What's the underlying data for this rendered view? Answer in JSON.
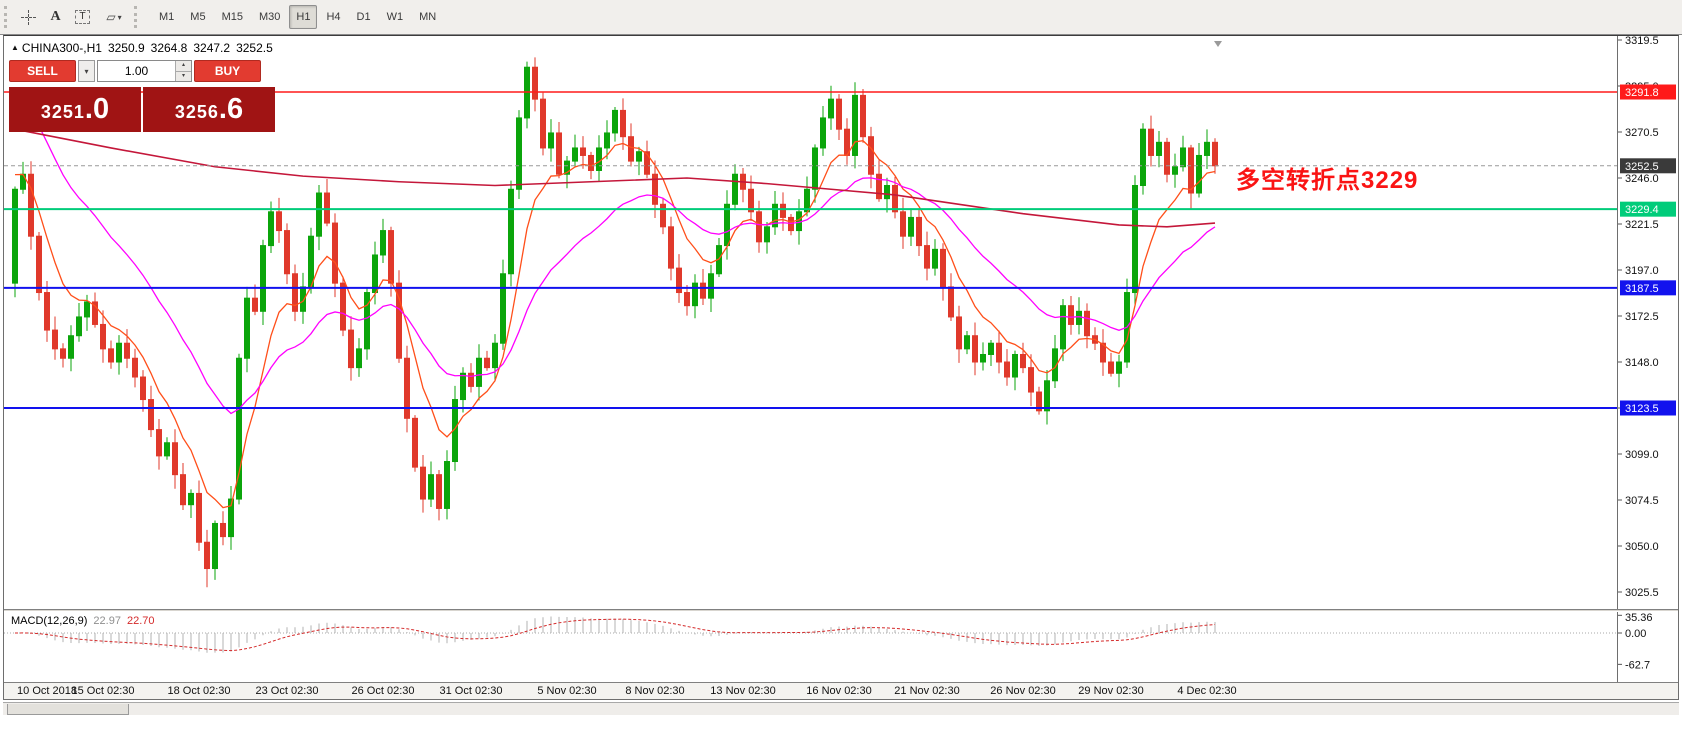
{
  "toolbar": {
    "text_tool_glyph": "A",
    "label_tool_glyph": "T",
    "shapes_glyph": "▱",
    "caret_glyph": "▾",
    "timeframes": [
      {
        "label": "M1",
        "active": false
      },
      {
        "label": "M5",
        "active": false
      },
      {
        "label": "M15",
        "active": false
      },
      {
        "label": "M30",
        "active": false
      },
      {
        "label": "H1",
        "active": true
      },
      {
        "label": "H4",
        "active": false
      },
      {
        "label": "D1",
        "active": false
      },
      {
        "label": "W1",
        "active": false
      },
      {
        "label": "MN",
        "active": false
      }
    ]
  },
  "chart_header": {
    "marker": "▲",
    "symbol": "CHINA300-,H1",
    "open": "3250.9",
    "high": "3264.8",
    "low": "3247.2",
    "close": "3252.5"
  },
  "trade_panel": {
    "sell_label": "SELL",
    "buy_label": "BUY",
    "volume": "1.00",
    "sell_price_main": "3251",
    "sell_price_frac": ".0",
    "buy_price_main": "3256",
    "buy_price_frac": ".6",
    "button_color": "#e23b30",
    "panel_color": "#a01414",
    "caret_down": "▾",
    "spin_up": "▴",
    "spin_down": "▾"
  },
  "annotation": {
    "text": "多空转折点3229",
    "color": "#fa1414"
  },
  "price_axis": {
    "ticks": [
      "3319.5",
      "3295.0",
      "3270.5",
      "3246.0",
      "3221.5",
      "3197.0",
      "3172.5",
      "3148.0",
      "3123.5",
      "3099.0",
      "3074.5",
      "3050.0",
      "3025.5"
    ]
  },
  "hlines": [
    {
      "price": 3291.8,
      "label": "3291.8",
      "color": "#ff1a1a",
      "width": 1.5
    },
    {
      "price": 3229.4,
      "label": "3229.4",
      "color": "#00cc7a",
      "width": 2
    },
    {
      "price": 3187.5,
      "label": "3187.5",
      "color": "#1212ee",
      "width": 2
    },
    {
      "price": 3123.5,
      "label": "3123.5",
      "color": "#1212ee",
      "width": 2
    }
  ],
  "current_price": {
    "value": 3252.5,
    "label": "3252.5",
    "badge_color": "#3a3a3a"
  },
  "chart_data": {
    "type": "candlestick",
    "title": "CHINA300-,H1",
    "symbol": "CHINA300-",
    "timeframe": "H1",
    "ylim": [
      3025.5,
      3319.5
    ],
    "up_color": "#0ba50b",
    "down_color": "#e0392b",
    "first_open": 3190,
    "wick_scale": 6,
    "closes": [
      3240,
      3248,
      3215,
      3185,
      3165,
      3155,
      3150,
      3162,
      3172,
      3180,
      3168,
      3155,
      3148,
      3158,
      3150,
      3140,
      3128,
      3112,
      3098,
      3105,
      3088,
      3072,
      3078,
      3052,
      3038,
      3062,
      3055,
      3075,
      3150,
      3182,
      3175,
      3210,
      3228,
      3218,
      3195,
      3175,
      3188,
      3215,
      3238,
      3222,
      3190,
      3165,
      3145,
      3155,
      3185,
      3205,
      3218,
      3190,
      3150,
      3118,
      3092,
      3075,
      3088,
      3070,
      3095,
      3128,
      3142,
      3135,
      3150,
      3145,
      3158,
      3195,
      3240,
      3278,
      3305,
      3288,
      3262,
      3270,
      3248,
      3255,
      3262,
      3258,
      3250,
      3262,
      3270,
      3282,
      3268,
      3255,
      3260,
      3248,
      3232,
      3220,
      3198,
      3185,
      3178,
      3190,
      3182,
      3195,
      3210,
      3232,
      3248,
      3240,
      3228,
      3212,
      3220,
      3232,
      3225,
      3218,
      3228,
      3240,
      3262,
      3278,
      3288,
      3272,
      3258,
      3290,
      3268,
      3248,
      3235,
      3242,
      3228,
      3215,
      3225,
      3210,
      3198,
      3208,
      3188,
      3172,
      3155,
      3162,
      3148,
      3152,
      3158,
      3148,
      3140,
      3152,
      3145,
      3132,
      3122,
      3138,
      3155,
      3178,
      3168,
      3175,
      3162,
      3158,
      3148,
      3142,
      3148,
      3185,
      3242,
      3272,
      3258,
      3265,
      3248,
      3252,
      3262,
      3238,
      3258,
      3265,
      3252.5
    ],
    "wick_overrides": {
      "24": {
        "low": 3028
      },
      "64": {
        "high": 3308
      },
      "105": {
        "high": 3297
      },
      "147": {
        "low": 3229
      }
    },
    "ma": [
      {
        "name": "fast",
        "type": "ema",
        "period": 8,
        "seed": 3250,
        "color": "#ff4f1a",
        "width": 1.3
      },
      {
        "name": "medium",
        "type": "ema",
        "period": 24,
        "seed": 3295,
        "color": "#ff00ff",
        "width": 1.3
      },
      {
        "name": "slow",
        "type": "points",
        "color": "#c4173a",
        "width": 1.6,
        "points": [
          [
            0,
            3272
          ],
          [
            12,
            3262
          ],
          [
            25,
            3252
          ],
          [
            36,
            3247
          ],
          [
            48,
            3244
          ],
          [
            60,
            3242
          ],
          [
            72,
            3244
          ],
          [
            84,
            3246
          ],
          [
            94,
            3243
          ],
          [
            102,
            3240
          ],
          [
            110,
            3237
          ],
          [
            118,
            3232
          ],
          [
            126,
            3227
          ],
          [
            132,
            3224
          ],
          [
            138,
            3221
          ],
          [
            144,
            3220
          ],
          [
            150,
            3222
          ]
        ]
      }
    ],
    "x_axis": {
      "labels": [
        "10 Oct 2018",
        "15 Oct 02:30",
        "18 Oct 02:30",
        "23 Oct 02:30",
        "26 Oct 02:30",
        "31 Oct 02:30",
        "5 Nov 02:30",
        "8 Nov 02:30",
        "13 Nov 02:30",
        "16 Nov 02:30",
        "21 Nov 02:30",
        "26 Nov 02:30",
        "29 Nov 02:30",
        "4 Dec 02:30"
      ],
      "indices": [
        4,
        11,
        23,
        34,
        46,
        57,
        69,
        80,
        91,
        103,
        114,
        126,
        137,
        149
      ]
    }
  },
  "macd_panel": {
    "title": "MACD(12,26,9)",
    "value": "22.97",
    "signal": "22.70",
    "params": {
      "fast": 12,
      "slow": 26,
      "signal": 9
    },
    "histogram_color": "#b3b3b3",
    "signal_color": "#d42a2a",
    "axis": [
      {
        "label": "35.36",
        "value": 35.36
      },
      {
        "label": "0.00",
        "value": 0
      },
      {
        "label": "-62.7",
        "value": -62.7
      }
    ]
  }
}
